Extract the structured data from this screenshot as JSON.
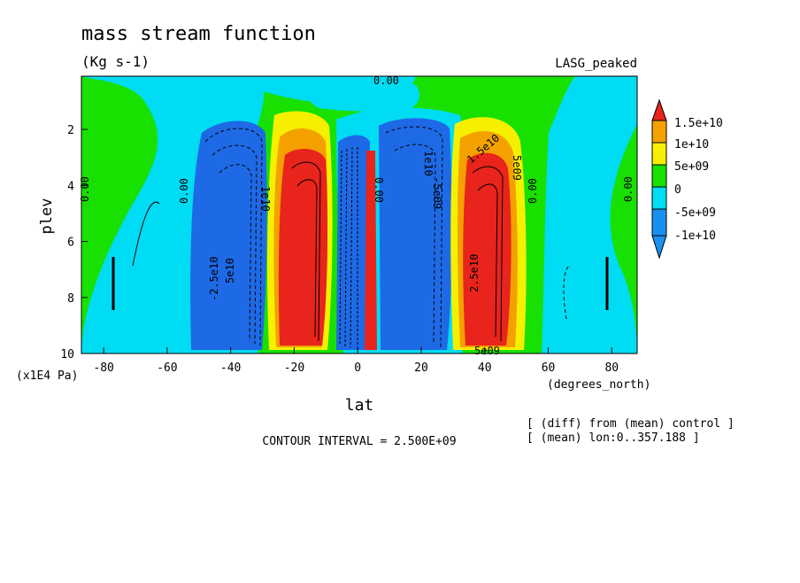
{
  "chart_data": {
    "type": "heatmap",
    "title": "mass stream function",
    "units": "(Kg s-1)",
    "experiment": "LASG_peaked",
    "xlabel": "lat",
    "x_units": "(degrees_north)",
    "ylabel": "plev",
    "y_units": "(x1E4 Pa)",
    "xlim": [
      -87,
      88
    ],
    "ylim": [
      10,
      0.1
    ],
    "x_ticks": [
      -80,
      -60,
      -40,
      -20,
      0,
      20,
      40,
      60,
      80
    ],
    "y_ticks": [
      2,
      4,
      6,
      8,
      10
    ],
    "contour_interval_text": "CONTOUR INTERVAL = 2.500E+09",
    "notes": [
      "[ (diff) from (mean) control ]",
      "[ (mean) lon:0..357.188 ]"
    ],
    "colorbar": {
      "levels": [
        "1.5e+10",
        "1e+10",
        "5e+09",
        "0",
        "-5e+09",
        "-1e+10"
      ],
      "bins": [
        {
          "range": [
            15000000000.0,
            null
          ],
          "color": "#e8241c"
        },
        {
          "range": [
            10000000000.0,
            15000000000.0
          ],
          "color": "#f4a100"
        },
        {
          "range": [
            5000000000.0,
            10000000000.0
          ],
          "color": "#f6f000"
        },
        {
          "range": [
            0,
            5000000000.0
          ],
          "color": "#18e000"
        },
        {
          "range": [
            -5000000000.0,
            0
          ],
          "color": "#00dcf4"
        },
        {
          "range": [
            -10000000000.0,
            -5000000000.0
          ],
          "color": "#1890f0"
        },
        {
          "range": [
            null,
            -10000000000.0
          ],
          "color": "#2260e0"
        }
      ]
    },
    "cells": [
      {
        "lat": [
          -50,
          -32
        ],
        "p": [
          2.3,
          9.8
        ],
        "color": "#1e6ae6"
      },
      {
        "lat": [
          -27,
          -8
        ],
        "p": [
          2.8,
          9.8
        ],
        "color": "#e8241c"
      },
      {
        "lat": [
          -7,
          0
        ],
        "p": [
          2.8,
          9.8
        ],
        "color": "#1e6ae6"
      },
      {
        "lat": [
          1,
          5
        ],
        "p": [
          3.0,
          9.7
        ],
        "color": "#e8241c"
      },
      {
        "lat": [
          6,
          24
        ],
        "p": [
          2.5,
          9.8
        ],
        "color": "#1e6ae6"
      },
      {
        "lat": [
          31,
          50
        ],
        "p": [
          2.5,
          9.8
        ],
        "color": "#e8241c"
      }
    ],
    "contour_labels": [
      "0.00",
      "0.00",
      "0.00",
      "0.00",
      "0.00",
      "0.00",
      "-2.5e10",
      "5e10",
      "1e10",
      "1e10",
      "1.5e10",
      "5e09",
      "5e09",
      "-5e09",
      "2.5e10"
    ]
  }
}
